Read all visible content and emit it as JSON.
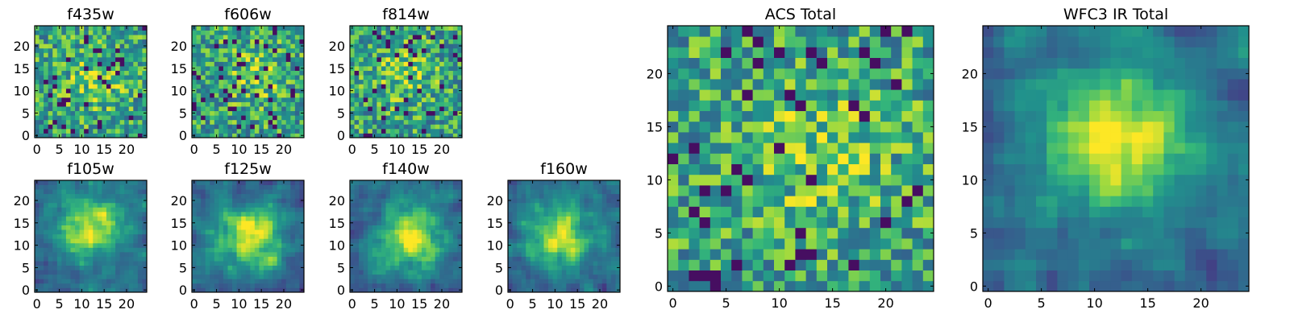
{
  "chart_data": {
    "type": "heatmap",
    "colormap": "viridis",
    "grid": false,
    "panels": [
      {
        "title": "f435w",
        "size": 25,
        "texture": "noise",
        "peak_center": [
          13,
          12
        ],
        "xticks": [
          0,
          5,
          10,
          15,
          20
        ],
        "yticks": [
          0,
          5,
          10,
          15,
          20
        ],
        "seed": 11
      },
      {
        "title": "f606w",
        "size": 25,
        "texture": "noise",
        "peak_center": [
          14,
          14
        ],
        "xticks": [
          0,
          5,
          10,
          15,
          20
        ],
        "yticks": [
          0,
          5,
          10,
          15,
          20
        ],
        "seed": 23
      },
      {
        "title": "f814w",
        "size": 25,
        "texture": "noise",
        "peak_center": [
          12,
          14
        ],
        "xticks": [
          0,
          5,
          10,
          15,
          20
        ],
        "yticks": [
          0,
          5,
          10,
          15,
          20
        ],
        "seed": 37
      },
      {
        "title": "f105w",
        "size": 25,
        "texture": "blob",
        "peak_center": [
          12,
          14
        ],
        "xticks": [
          0,
          5,
          10,
          15,
          20
        ],
        "yticks": [
          0,
          5,
          10,
          15,
          20
        ],
        "seed": 41
      },
      {
        "title": "f125w",
        "size": 25,
        "texture": "blob",
        "peak_center": [
          13,
          12
        ],
        "xticks": [
          0,
          5,
          10,
          15,
          20
        ],
        "yticks": [
          0,
          5,
          10,
          15,
          20
        ],
        "seed": 53
      },
      {
        "title": "f140w",
        "size": 25,
        "texture": "blob",
        "peak_center": [
          13,
          12
        ],
        "xticks": [
          0,
          5,
          10,
          15,
          20
        ],
        "yticks": [
          0,
          5,
          10,
          15,
          20
        ],
        "seed": 67
      },
      {
        "title": "f160w",
        "size": 25,
        "texture": "blob",
        "peak_center": [
          11,
          12
        ],
        "xticks": [
          0,
          5,
          10,
          15,
          20
        ],
        "yticks": [
          0,
          5,
          10,
          15,
          20
        ],
        "seed": 79
      },
      {
        "title": "ACS Total",
        "size": 25,
        "texture": "noise",
        "peak_center": [
          14,
          13
        ],
        "xticks": [
          0,
          5,
          10,
          15,
          20
        ],
        "yticks": [
          0,
          5,
          10,
          15,
          20
        ],
        "seed": 97
      },
      {
        "title": "WFC3 IR Total",
        "size": 25,
        "texture": "blob",
        "peak_center": [
          12,
          14
        ],
        "xticks": [
          0,
          5,
          10,
          15,
          20
        ],
        "yticks": [
          0,
          5,
          10,
          15,
          20
        ],
        "seed": 113
      }
    ]
  }
}
